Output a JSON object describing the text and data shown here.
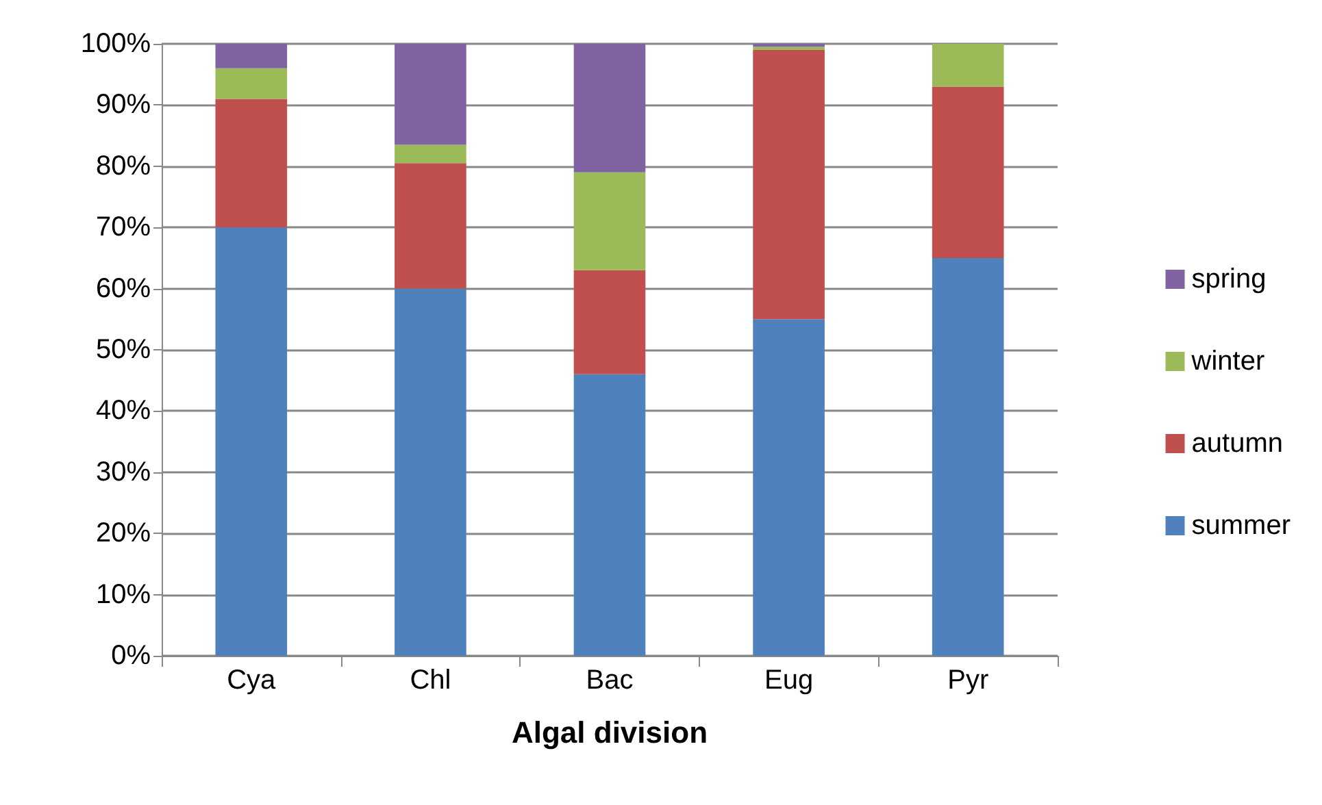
{
  "chart_data": {
    "type": "bar",
    "stacked": true,
    "xlabel": "Algal division",
    "categories": [
      "Cya",
      "Chl",
      "Bac",
      "Eug",
      "Pyr"
    ],
    "series": [
      {
        "name": "summer",
        "color": "#4f81bd",
        "values": [
          70,
          60,
          46,
          55,
          65
        ]
      },
      {
        "name": "autumn",
        "color": "#c0504d",
        "values": [
          21,
          20.5,
          17,
          44,
          28
        ]
      },
      {
        "name": "winter",
        "color": "#9bbb59",
        "values": [
          5,
          3,
          16,
          0.5,
          7
        ]
      },
      {
        "name": "spring",
        "color": "#8064a2",
        "values": [
          4,
          16.5,
          21,
          0.5,
          0
        ]
      }
    ],
    "ylim": [
      0,
      100
    ],
    "yticks": [
      {
        "value": 0,
        "label": "0%"
      },
      {
        "value": 10,
        "label": "10%"
      },
      {
        "value": 20,
        "label": "20%"
      },
      {
        "value": 30,
        "label": "30%"
      },
      {
        "value": 40,
        "label": "40%"
      },
      {
        "value": 50,
        "label": "50%"
      },
      {
        "value": 60,
        "label": "60%"
      },
      {
        "value": 70,
        "label": "70%"
      },
      {
        "value": 80,
        "label": "80%"
      },
      {
        "value": 90,
        "label": "90%"
      },
      {
        "value": 100,
        "label": "100%"
      }
    ],
    "grid": "y",
    "legend": "right"
  }
}
